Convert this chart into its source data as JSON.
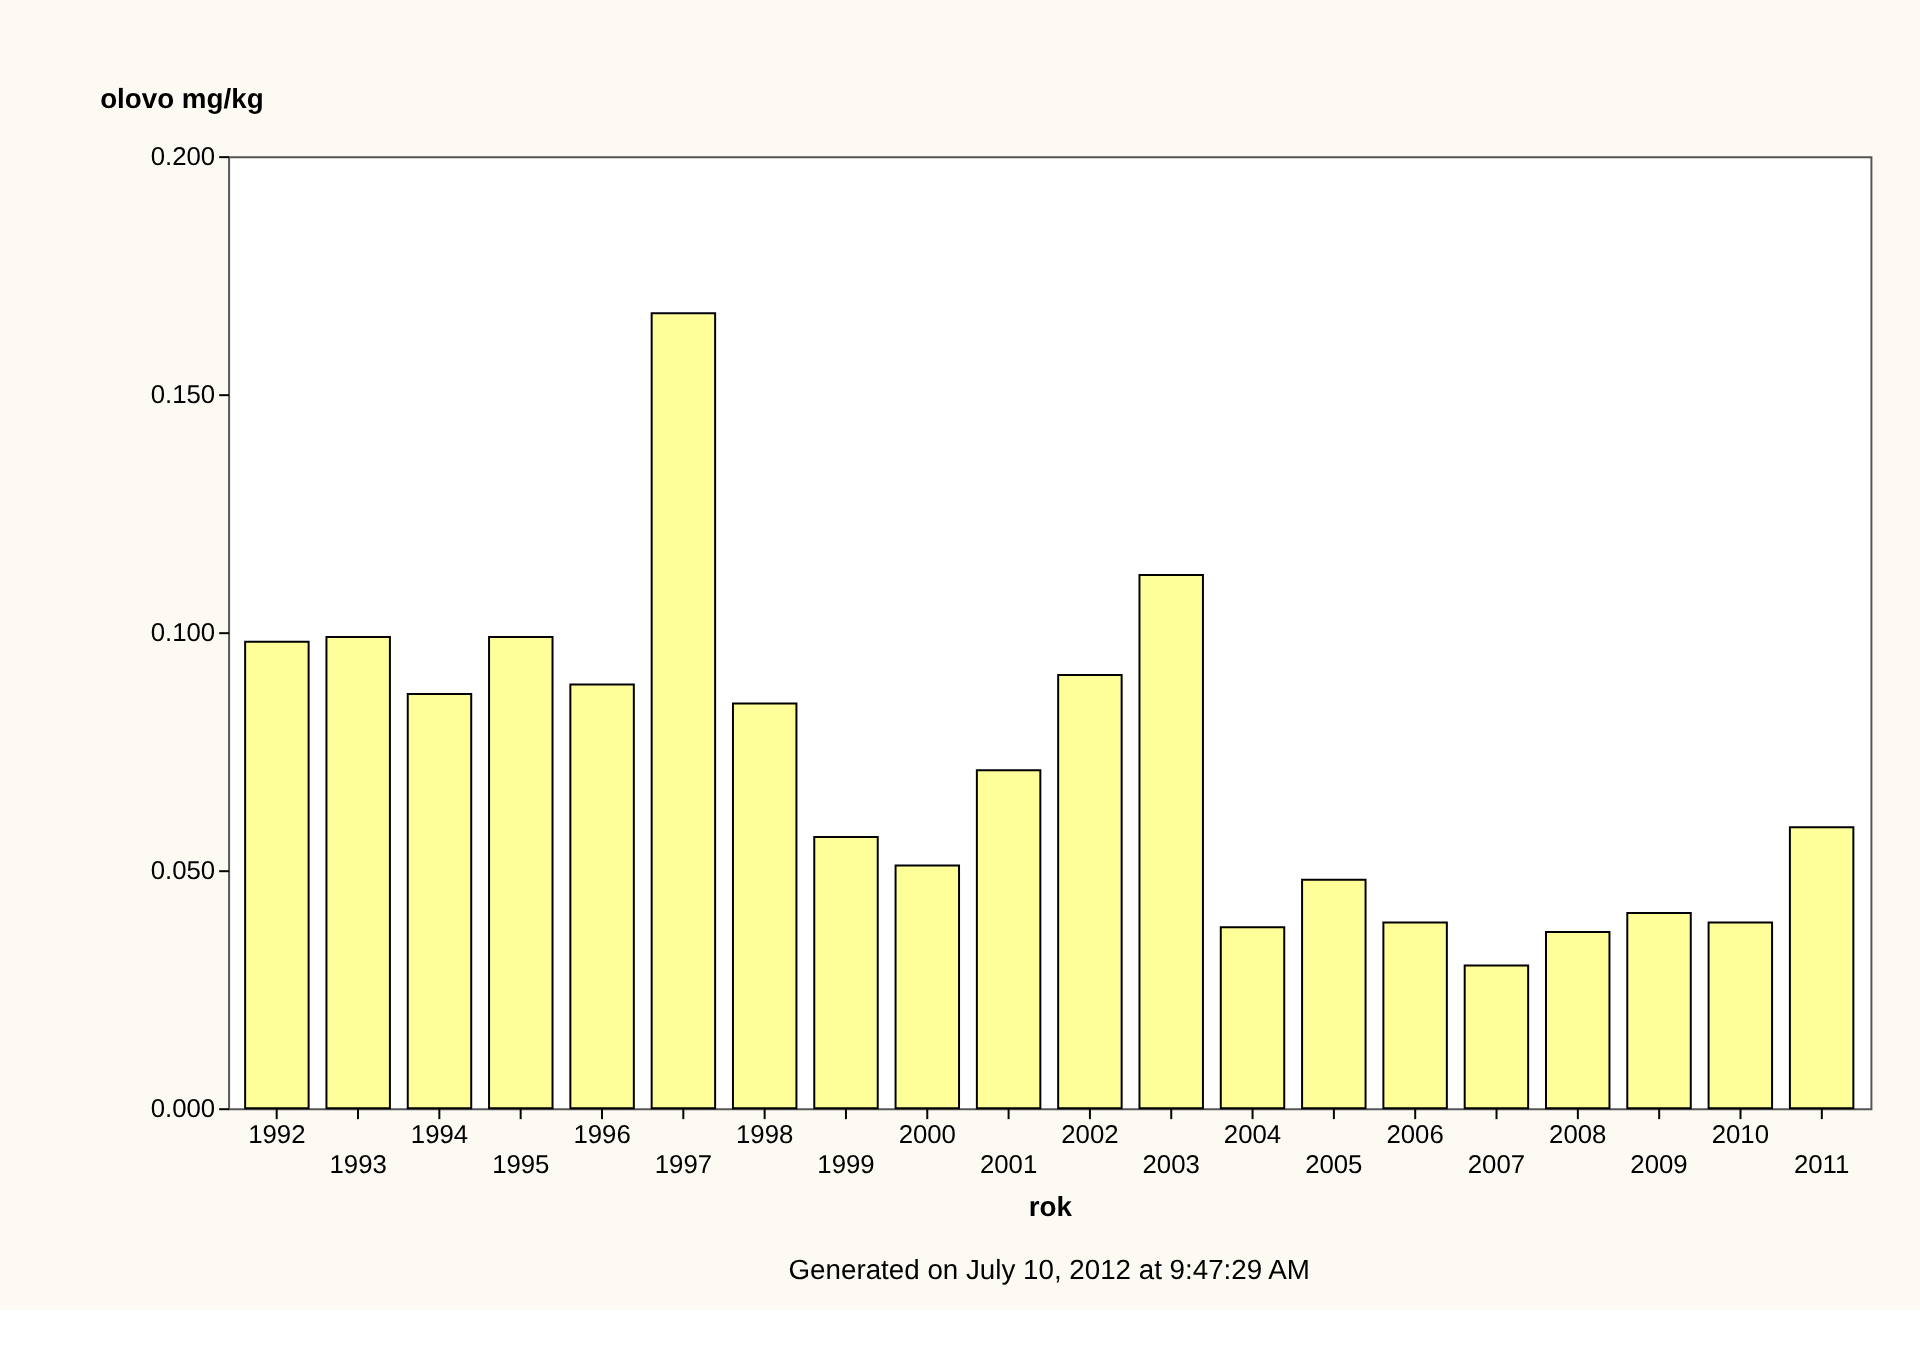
{
  "chart_data": {
    "type": "bar",
    "xlabel": "rok",
    "ylabel": "olovo mg/kg",
    "categories": [
      "1992",
      "1993",
      "1994",
      "1995",
      "1996",
      "1997",
      "1998",
      "1999",
      "2000",
      "2001",
      "2002",
      "2003",
      "2004",
      "2005",
      "2006",
      "2007",
      "2008",
      "2009",
      "2010",
      "2011"
    ],
    "values": [
      0.098,
      0.099,
      0.087,
      0.099,
      0.089,
      0.167,
      0.085,
      0.057,
      0.051,
      0.071,
      0.091,
      0.112,
      0.038,
      0.048,
      0.039,
      0.03,
      0.037,
      0.041,
      0.039,
      0.059
    ],
    "color": "#ffff99",
    "ylim": [
      0,
      0.2
    ],
    "yticks": [
      {
        "value": 0,
        "label": "0.000"
      },
      {
        "value": 0.05,
        "label": "0.050"
      },
      {
        "value": 0.1,
        "label": "0.100"
      },
      {
        "value": 0.15,
        "label": "0.150"
      },
      {
        "value": 0.2,
        "label": "0.200"
      }
    ],
    "grid": false,
    "annotations": [
      "Generated on July 10, 2012 at 9:47:29 AM"
    ]
  }
}
